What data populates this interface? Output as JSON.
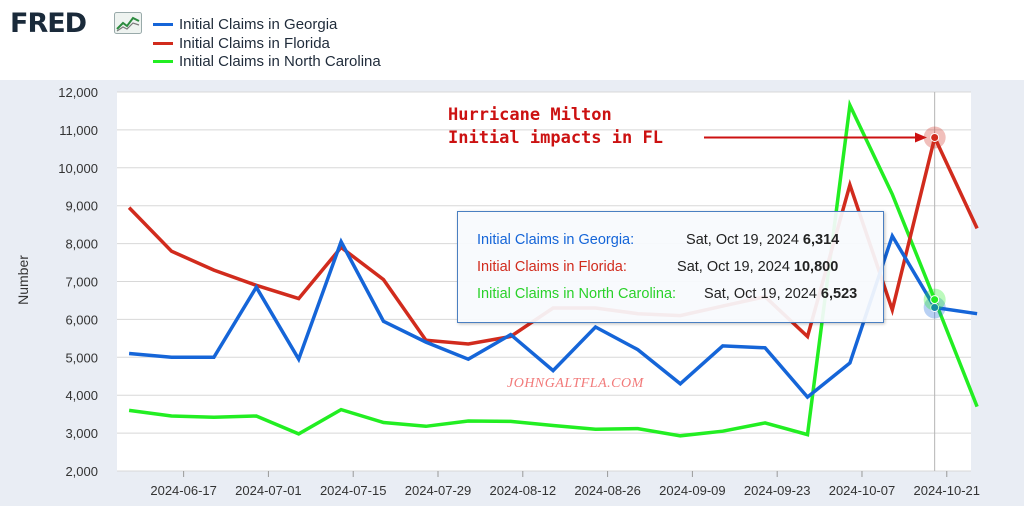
{
  "header": {
    "logo_text": "FRED",
    "logo_mark": "fred-graph-icon"
  },
  "colors": {
    "georgia": "#1565d8",
    "florida": "#d12b1d",
    "north_carolina": "#22ee22",
    "grid": "#d8d8d8",
    "plot_bg": "#ffffff",
    "page_bg": "#e9edf4"
  },
  "annotation": {
    "line1": "Hurricane Milton",
    "line2": "Initial impacts in FL"
  },
  "watermark": "JOHNGALTFLA.COM",
  "tooltip": {
    "rows": [
      {
        "label": "Initial Claims in Georgia:",
        "date": "Sat, Oct 19, 2024",
        "value": "6,314"
      },
      {
        "label": "Initial Claims in Florida:",
        "date": "Sat, Oct 19, 2024",
        "value": "10,800"
      },
      {
        "label": "Initial Claims in North Carolina:",
        "date": "Sat, Oct 19, 2024",
        "value": "6,523"
      }
    ]
  },
  "chart_data": {
    "type": "line",
    "title": "",
    "xlabel": "",
    "ylabel": "Number",
    "ylim": [
      2000,
      12000
    ],
    "yticks": [
      2000,
      3000,
      4000,
      5000,
      6000,
      7000,
      8000,
      9000,
      10000,
      11000,
      12000
    ],
    "ytick_labels": [
      "2,000",
      "3,000",
      "4,000",
      "5,000",
      "6,000",
      "7,000",
      "8,000",
      "9,000",
      "10,000",
      "11,000",
      "12,000"
    ],
    "xlim": [
      "2024-06-06",
      "2024-10-25"
    ],
    "xticks": [
      "2024-06-17",
      "2024-07-01",
      "2024-07-15",
      "2024-07-29",
      "2024-08-12",
      "2024-08-26",
      "2024-09-09",
      "2024-09-23",
      "2024-10-07",
      "2024-10-21"
    ],
    "grid": true,
    "legend": "top-left",
    "highlight_date": "2024-10-19",
    "dates": [
      "2024-06-08",
      "2024-06-15",
      "2024-06-22",
      "2024-06-29",
      "2024-07-06",
      "2024-07-13",
      "2024-07-20",
      "2024-07-27",
      "2024-08-03",
      "2024-08-10",
      "2024-08-17",
      "2024-08-24",
      "2024-08-31",
      "2024-09-07",
      "2024-09-14",
      "2024-09-21",
      "2024-09-28",
      "2024-10-05",
      "2024-10-12",
      "2024-10-19",
      "2024-10-26"
    ],
    "series": [
      {
        "name": "Initial Claims in Georgia",
        "color_key": "georgia",
        "values": [
          5100,
          5000,
          5000,
          6850,
          4950,
          8050,
          5950,
          5400,
          4950,
          5600,
          4650,
          5800,
          5200,
          4300,
          5300,
          5250,
          3950,
          4850,
          8200,
          6314,
          6150
        ]
      },
      {
        "name": "Initial Claims in Florida",
        "color_key": "florida",
        "values": [
          8950,
          7800,
          7300,
          6900,
          6550,
          7900,
          7050,
          5450,
          5350,
          5550,
          6300,
          6300,
          6150,
          6100,
          6350,
          6600,
          5550,
          9550,
          6250,
          10800,
          8400
        ]
      },
      {
        "name": "Initial Claims in North Carolina",
        "color_key": "north_carolina",
        "values": [
          3600,
          3450,
          3420,
          3450,
          2980,
          3620,
          3280,
          3180,
          3320,
          3310,
          3200,
          3100,
          3120,
          2930,
          3050,
          3270,
          2960,
          11650,
          9300,
          6523,
          3700
        ]
      }
    ]
  }
}
